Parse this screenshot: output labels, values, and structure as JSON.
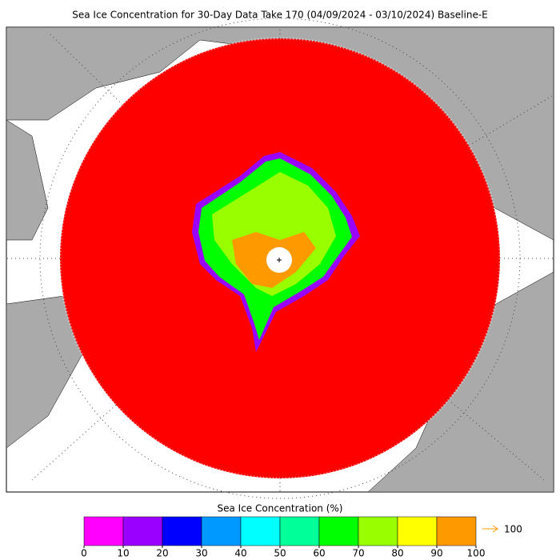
{
  "title": "Sea Ice Concentration for 30-Day Data Take 170 (04/09/2024 - 03/10/2024) Baseline-E",
  "colorbar": {
    "title": "Sea Ice Concentration (%)",
    "ticks": [
      0,
      10,
      20,
      30,
      40,
      50,
      60,
      70,
      80,
      90,
      100
    ],
    "colors": [
      "#ff00ff",
      "#9900ff",
      "#0000ff",
      "#0099ff",
      "#00ffff",
      "#00ff99",
      "#00ff00",
      "#99ff00",
      "#ffff00",
      "#ff9900"
    ],
    "overflow_label": "100",
    "overflow_color": "#ff9900"
  }
}
